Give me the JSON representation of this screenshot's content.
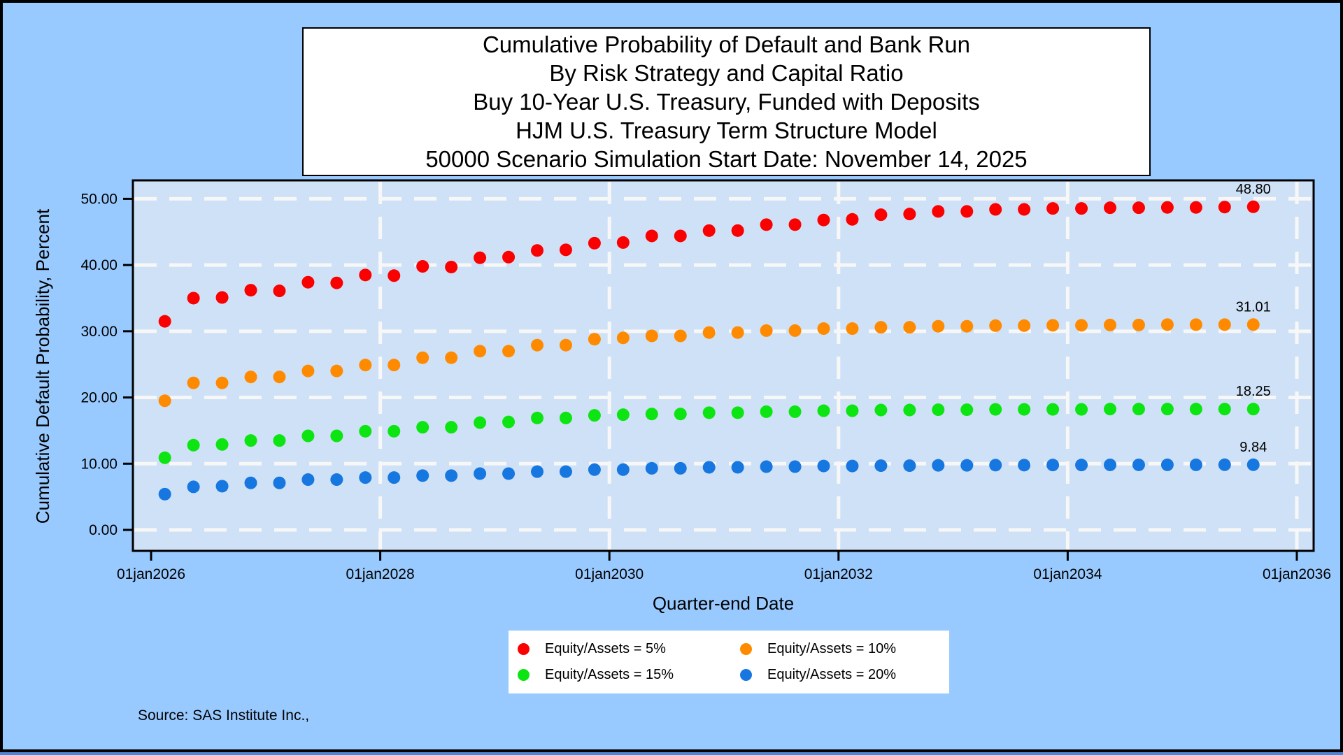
{
  "title": {
    "lines": [
      "Cumulative Probability of Default and Bank Run",
      "By Risk Strategy and Capital Ratio",
      "Buy 10-Year U.S. Treasury, Funded with Deposits",
      "HJM U.S. Treasury Term Structure Model",
      "50000 Scenario Simulation Start Date: November 14, 2025"
    ]
  },
  "footnote": "Source: SAS Institute Inc.,",
  "colors": {
    "page_background": "#99caff",
    "plot_background": "#cfe1f6",
    "gridline": "#f7f7f7",
    "series_red": "#fb0000",
    "series_orange": "#ff8a00",
    "series_green": "#0ce512",
    "series_blue": "#1777e0"
  },
  "axes": {
    "y": {
      "label": "Cumulative Default Probability, Percent",
      "tick_labels": [
        "50.00",
        "40.00",
        "30.00",
        "20.00",
        "10.00",
        "0.00"
      ],
      "tick_values": [
        50,
        40,
        30,
        20,
        10,
        0
      ]
    },
    "x": {
      "label": "Quarter-end Date",
      "tick_labels": [
        "01jan2026",
        "01jan2028",
        "01jan2030",
        "01jan2032",
        "01jan2034",
        "01jan2036"
      ],
      "tick_values": [
        2026,
        2028,
        2030,
        2032,
        2034,
        2036
      ],
      "gridline_values": [
        2028,
        2030,
        2032,
        2034,
        2036
      ]
    }
  },
  "legend": {
    "items": [
      {
        "label": "Equity/Assets = 5%",
        "color": "#fb0000"
      },
      {
        "label": "Equity/Assets = 10%",
        "color": "#ff8a00"
      },
      {
        "label": "Equity/Assets = 15%",
        "color": "#0ce512"
      },
      {
        "label": "Equity/Assets = 20%",
        "color": "#1777e0"
      }
    ]
  },
  "chart_data": {
    "type": "scatter",
    "title": "Cumulative Probability of Default and Bank Run By Risk Strategy and Capital Ratio",
    "xlabel": "Quarter-end Date",
    "ylabel": "Cumulative Default Probability, Percent",
    "ylim": [
      0,
      50
    ],
    "xlim": [
      2025.84,
      2036.15
    ],
    "grid": "white dashed, horizontal at 0-50 by 10, vertical at 2-year ticks",
    "legend_position": "bottom",
    "x_unit": "decimal year (quarterly points)",
    "x": [
      2026.12,
      2026.37,
      2026.62,
      2026.87,
      2027.12,
      2027.37,
      2027.62,
      2027.87,
      2028.12,
      2028.37,
      2028.62,
      2028.87,
      2029.12,
      2029.37,
      2029.62,
      2029.87,
      2030.12,
      2030.37,
      2030.62,
      2030.87,
      2031.12,
      2031.37,
      2031.62,
      2031.87,
      2032.12,
      2032.37,
      2032.62,
      2032.87,
      2033.12,
      2033.37,
      2033.62,
      2033.87,
      2034.12,
      2034.37,
      2034.62,
      2034.87,
      2035.12,
      2035.37,
      2035.62
    ],
    "series": [
      {
        "name": "Equity/Assets = 5%",
        "color": "#fb0000",
        "end_label": "48.80",
        "values": [
          31.5,
          35.0,
          35.1,
          36.2,
          36.1,
          37.4,
          37.3,
          38.5,
          38.4,
          39.8,
          39.7,
          41.1,
          41.2,
          42.2,
          42.3,
          43.3,
          43.4,
          44.4,
          44.4,
          45.2,
          45.2,
          46.1,
          46.1,
          46.8,
          46.9,
          47.6,
          47.7,
          48.1,
          48.1,
          48.4,
          48.4,
          48.55,
          48.55,
          48.65,
          48.65,
          48.7,
          48.7,
          48.75,
          48.8
        ]
      },
      {
        "name": "Equity/Assets = 10%",
        "color": "#ff8a00",
        "end_label": "31.01",
        "values": [
          19.5,
          22.2,
          22.2,
          23.1,
          23.1,
          24.0,
          24.0,
          24.9,
          24.9,
          26.0,
          26.0,
          27.0,
          27.0,
          27.9,
          27.9,
          28.8,
          29.0,
          29.3,
          29.3,
          29.8,
          29.8,
          30.1,
          30.1,
          30.4,
          30.4,
          30.6,
          30.6,
          30.75,
          30.75,
          30.85,
          30.85,
          30.9,
          30.9,
          30.95,
          30.95,
          31.0,
          31.0,
          31.0,
          31.01
        ]
      },
      {
        "name": "Equity/Assets = 15%",
        "color": "#0ce512",
        "end_label": "18.25",
        "values": [
          10.9,
          12.8,
          12.9,
          13.5,
          13.5,
          14.2,
          14.2,
          14.9,
          14.9,
          15.5,
          15.5,
          16.2,
          16.3,
          16.9,
          16.9,
          17.3,
          17.4,
          17.5,
          17.5,
          17.7,
          17.7,
          17.85,
          17.85,
          18.0,
          18.0,
          18.1,
          18.1,
          18.15,
          18.15,
          18.2,
          18.2,
          18.2,
          18.2,
          18.25,
          18.25,
          18.25,
          18.25,
          18.25,
          18.25
        ]
      },
      {
        "name": "Equity/Assets = 20%",
        "color": "#1777e0",
        "end_label": "9.84",
        "values": [
          5.4,
          6.5,
          6.6,
          7.1,
          7.1,
          7.6,
          7.6,
          7.9,
          7.9,
          8.2,
          8.2,
          8.5,
          8.5,
          8.8,
          8.8,
          9.1,
          9.1,
          9.3,
          9.3,
          9.45,
          9.45,
          9.55,
          9.55,
          9.65,
          9.65,
          9.7,
          9.7,
          9.75,
          9.75,
          9.78,
          9.78,
          9.8,
          9.8,
          9.82,
          9.82,
          9.83,
          9.83,
          9.84,
          9.84
        ]
      }
    ]
  }
}
